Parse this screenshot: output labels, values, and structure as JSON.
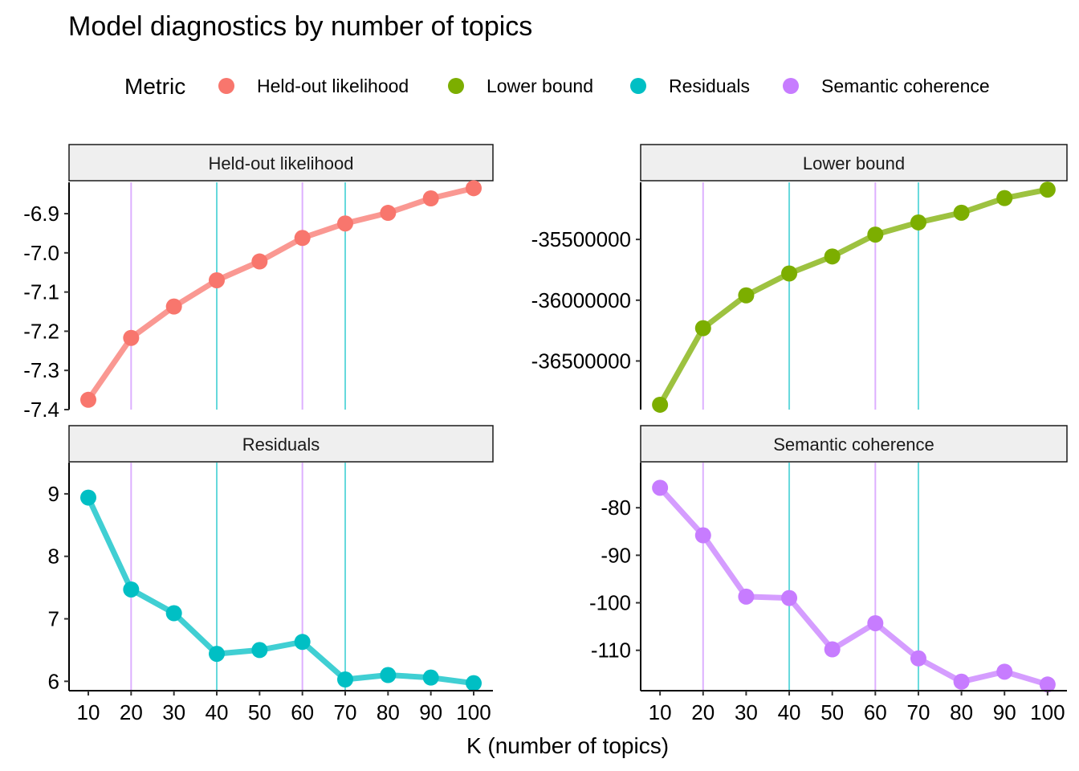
{
  "chart_data": {
    "type": "line",
    "title": "Model diagnostics by number of topics",
    "xlabel": "K (number of topics)",
    "legend": {
      "title": "Metric",
      "position": "top",
      "entries": [
        {
          "name": "Held-out likelihood",
          "color": "#F8766D"
        },
        {
          "name": "Lower bound",
          "color": "#7CAE00"
        },
        {
          "name": "Residuals",
          "color": "#00BFC4"
        },
        {
          "name": "Semantic coherence",
          "color": "#C77CFF"
        }
      ]
    },
    "x": [
      10,
      20,
      30,
      40,
      50,
      60,
      70,
      80,
      90,
      100
    ],
    "x_ticks": [
      "10",
      "20",
      "30",
      "40",
      "50",
      "60",
      "70",
      "80",
      "90",
      "100"
    ],
    "reference_lines": [
      {
        "x": 20,
        "color": "#C77CFF"
      },
      {
        "x": 40,
        "color": "#00BFC4"
      },
      {
        "x": 60,
        "color": "#C77CFF"
      },
      {
        "x": 70,
        "color": "#00BFC4"
      }
    ],
    "panels": [
      {
        "name": "Held-out likelihood",
        "color": "#F8766D",
        "values": [
          -7.375,
          -7.217,
          -7.137,
          -7.07,
          -7.022,
          -6.962,
          -6.925,
          -6.898,
          -6.861,
          -6.835
        ],
        "ylim": [
          -7.4,
          -6.82
        ],
        "y_ticks": [
          -7.4,
          -7.3,
          -7.2,
          -7.1,
          -7.0,
          -6.9
        ],
        "y_tick_labels": [
          "-7.4",
          "-7.3",
          "-7.2",
          "-7.1",
          "-7.0",
          "-6.9"
        ]
      },
      {
        "name": "Lower bound",
        "color": "#7CAE00",
        "values": [
          -36860000,
          -36230000,
          -35960000,
          -35780000,
          -35640000,
          -35460000,
          -35360000,
          -35280000,
          -35160000,
          -35090000
        ],
        "ylim": [
          -36900000,
          -35030000
        ],
        "y_ticks": [
          -36500000,
          -36000000,
          -35500000
        ],
        "y_tick_labels": [
          "-36500000",
          "-36000000",
          "-35500000"
        ]
      },
      {
        "name": "Residuals",
        "color": "#00BFC4",
        "values": [
          8.94,
          7.47,
          7.09,
          6.44,
          6.5,
          6.63,
          6.03,
          6.1,
          6.06,
          5.97
        ],
        "ylim": [
          5.85,
          9.5
        ],
        "y_ticks": [
          6,
          7,
          8,
          9
        ],
        "y_tick_labels": [
          "6",
          "7",
          "8",
          "9"
        ]
      },
      {
        "name": "Semantic coherence",
        "color": "#C77CFF",
        "values": [
          -75.8,
          -85.8,
          -98.7,
          -99.0,
          -109.8,
          -104.3,
          -111.7,
          -116.6,
          -114.5,
          -117.2
        ],
        "ylim": [
          -118.5,
          -70.5
        ],
        "y_ticks": [
          -110,
          -100,
          -90,
          -80
        ],
        "y_tick_labels": [
          "-110",
          "-100",
          "-90",
          "-80"
        ]
      }
    ]
  }
}
